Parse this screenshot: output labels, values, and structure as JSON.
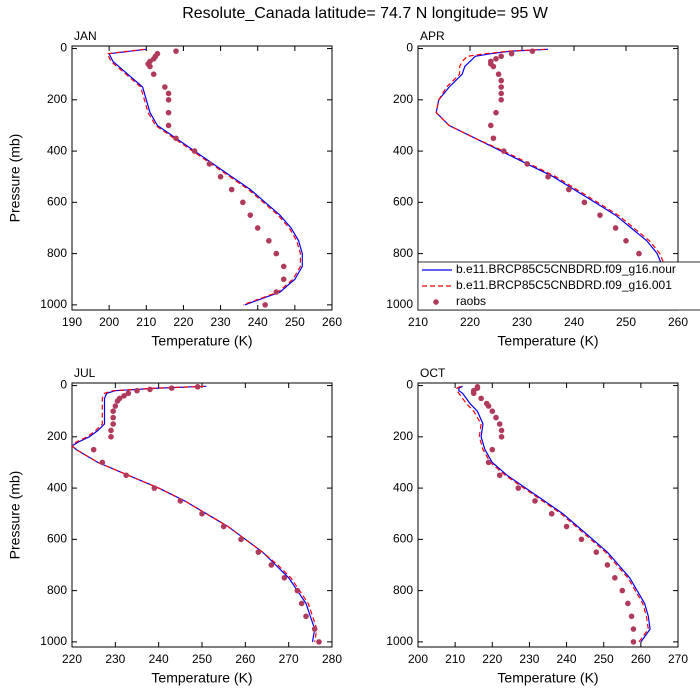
{
  "title": "Resolute_Canada  latitude= 74.7 N longitude= 95 W",
  "chart_data": [
    {
      "type": "line",
      "title": "JAN",
      "xlabel": "Temperature (K)",
      "ylabel": "Pressure (mb)",
      "xlim": [
        190,
        260
      ],
      "xticks": [
        190,
        200,
        210,
        220,
        230,
        240,
        250,
        260
      ],
      "ylim": [
        -10,
        1020
      ],
      "yticks": [
        0,
        200,
        400,
        600,
        800,
        1000
      ],
      "y_inverted": true,
      "series": [
        {
          "color": "#0000ff",
          "style": "solid",
          "x": [
            210,
            200,
            201,
            205,
            209,
            210,
            211,
            213,
            218,
            223,
            228,
            233,
            238,
            242,
            246,
            249,
            251,
            252,
            252,
            250,
            246,
            236.5
          ],
          "y": [
            3,
            20,
            50,
            100,
            150,
            200,
            250,
            300,
            350,
            400,
            450,
            500,
            550,
            600,
            650,
            700,
            750,
            800,
            850,
            900,
            950,
            1000
          ]
        },
        {
          "color": "#ff0000",
          "style": "dashed",
          "x": [
            209.5,
            199.5,
            200.5,
            204.5,
            208.5,
            209.5,
            210.5,
            212.5,
            217.5,
            222.5,
            227.5,
            232.5,
            237.5,
            241.5,
            245.5,
            248.5,
            250.5,
            251.5,
            251.5,
            249.5,
            245.5,
            236
          ],
          "y": [
            3,
            20,
            50,
            100,
            150,
            200,
            250,
            300,
            350,
            400,
            450,
            500,
            550,
            600,
            650,
            700,
            750,
            800,
            850,
            900,
            950,
            1000
          ]
        },
        {
          "color": "#b03a5b",
          "style": "markers",
          "x": [
            218,
            213,
            212.5,
            212,
            211,
            210.5,
            211,
            212,
            215,
            216,
            216,
            216,
            216,
            218,
            223,
            227,
            230,
            233,
            236,
            238,
            240,
            243,
            245,
            247,
            247,
            245,
            242
          ],
          "y": [
            10,
            20,
            30,
            40,
            50,
            60,
            70,
            100,
            150,
            175,
            200,
            250,
            300,
            350,
            400,
            450,
            500,
            550,
            600,
            650,
            700,
            750,
            800,
            850,
            900,
            950,
            1000
          ]
        }
      ]
    },
    {
      "type": "line",
      "title": "APR",
      "xlabel": "Temperature (K)",
      "xlim": [
        210,
        260
      ],
      "xticks": [
        210,
        220,
        230,
        240,
        250,
        260
      ],
      "ylim": [
        -10,
        1020
      ],
      "yticks": [
        0,
        200,
        400,
        600,
        800,
        1000
      ],
      "y_inverted": true,
      "legend": "lower right",
      "series": [
        {
          "name": "b.e11.BRCP85C5CNBDRD.f09_g16.nour",
          "color": "#0000ff",
          "style": "solid",
          "x": [
            235,
            228,
            224,
            221,
            220,
            219,
            218.5,
            216,
            214,
            213.5,
            216,
            221,
            226,
            231,
            236,
            240,
            244,
            248,
            251,
            254,
            256,
            257,
            257,
            255,
            249
          ],
          "y": [
            3,
            10,
            20,
            30,
            50,
            70,
            100,
            150,
            200,
            250,
            300,
            350,
            400,
            450,
            500,
            550,
            600,
            650,
            700,
            750,
            800,
            850,
            900,
            950,
            1000
          ]
        },
        {
          "name": "b.e11.BRCP85C5CNBDRD.f09_g16.001",
          "color": "#ff0000",
          "style": "dashed",
          "x": [
            234.5,
            227.5,
            223,
            219.5,
            218.5,
            218,
            218,
            215.5,
            214,
            213.5,
            216,
            221,
            226.5,
            231.5,
            236.5,
            240.5,
            244.5,
            248.5,
            251.5,
            254.5,
            256.5,
            257.5,
            257.5,
            255.5,
            249.5
          ],
          "y": [
            3,
            10,
            20,
            30,
            50,
            70,
            100,
            150,
            200,
            250,
            300,
            350,
            400,
            450,
            500,
            550,
            600,
            650,
            700,
            750,
            800,
            850,
            900,
            950,
            1000
          ]
        },
        {
          "name": "raobs",
          "color": "#b03a5b",
          "style": "markers",
          "x": [
            232,
            228,
            226,
            225,
            224,
            224,
            224.5,
            225.5,
            226,
            226,
            226,
            226,
            225,
            224,
            224.5,
            226.5,
            231,
            235,
            239,
            242,
            245,
            248,
            250,
            252.5,
            254,
            255,
            254.5,
            252
          ],
          "y": [
            10,
            20,
            30,
            40,
            50,
            60,
            70,
            100,
            125,
            150,
            175,
            200,
            250,
            300,
            350,
            400,
            450,
            500,
            550,
            600,
            650,
            700,
            750,
            800,
            850,
            900,
            950,
            1000
          ]
        }
      ]
    },
    {
      "type": "line",
      "title": "JUL",
      "xlabel": "Temperature (K)",
      "ylabel": "Pressure (mb)",
      "xlim": [
        220,
        280
      ],
      "xticks": [
        220,
        230,
        240,
        250,
        260,
        270,
        280
      ],
      "ylim": [
        -10,
        1020
      ],
      "yticks": [
        0,
        200,
        400,
        600,
        800,
        1000
      ],
      "y_inverted": true,
      "series": [
        {
          "color": "#0000ff",
          "style": "solid",
          "x": [
            251,
            240,
            230,
            228,
            227.5,
            227.5,
            227.5,
            226,
            224,
            221.5,
            220,
            221,
            226,
            233,
            240,
            246,
            251,
            256,
            260,
            264,
            267,
            270,
            272,
            274,
            275,
            276,
            275.5
          ],
          "y": [
            3,
            10,
            20,
            30,
            50,
            100,
            150,
            175,
            200,
            220,
            235,
            250,
            300,
            350,
            400,
            450,
            500,
            550,
            600,
            650,
            700,
            750,
            800,
            850,
            900,
            950,
            1000
          ]
        },
        {
          "color": "#ff0000",
          "style": "dashed",
          "x": [
            250.5,
            239.5,
            229.5,
            227.5,
            227,
            227,
            227,
            225.5,
            223.5,
            221,
            220,
            221,
            226,
            233,
            240,
            246,
            251,
            256,
            260,
            264,
            267.5,
            270.5,
            272.5,
            274.5,
            275.5,
            276.5,
            276
          ],
          "y": [
            3,
            10,
            20,
            30,
            50,
            100,
            150,
            175,
            200,
            220,
            235,
            250,
            300,
            350,
            400,
            450,
            500,
            550,
            600,
            650,
            700,
            750,
            800,
            850,
            900,
            950,
            1000
          ]
        },
        {
          "color": "#b03a5b",
          "style": "markers",
          "x": [
            249,
            243,
            238,
            235,
            233,
            232,
            231,
            230.5,
            230,
            229.5,
            229.5,
            229.5,
            229,
            229,
            225,
            227,
            232.5,
            239,
            245,
            250,
            255,
            259,
            263,
            266,
            269,
            272,
            273,
            274,
            276,
            277
          ],
          "y": [
            5,
            10,
            15,
            20,
            30,
            40,
            50,
            60,
            80,
            100,
            125,
            150,
            175,
            200,
            250,
            300,
            350,
            400,
            450,
            500,
            550,
            600,
            650,
            700,
            750,
            800,
            850,
            900,
            950,
            1000
          ]
        }
      ]
    },
    {
      "type": "line",
      "title": "OCT",
      "xlabel": "Temperature (K)",
      "xlim": [
        200,
        270
      ],
      "xticks": [
        200,
        210,
        220,
        230,
        240,
        250,
        260,
        270
      ],
      "ylim": [
        -10,
        1020
      ],
      "yticks": [
        0,
        200,
        400,
        600,
        800,
        1000
      ],
      "y_inverted": true,
      "series": [
        {
          "color": "#0000ff",
          "style": "solid",
          "x": [
            212,
            211,
            211,
            212,
            213,
            214,
            216,
            217.5,
            217,
            218,
            220,
            224,
            229,
            234,
            239,
            243,
            247,
            251,
            254,
            257,
            259,
            261,
            262,
            262.5,
            260
          ],
          "y": [
            3,
            10,
            20,
            30,
            50,
            70,
            100,
            150,
            200,
            250,
            300,
            350,
            400,
            450,
            500,
            550,
            600,
            650,
            700,
            750,
            800,
            850,
            900,
            950,
            1000
          ]
        },
        {
          "color": "#ff0000",
          "style": "dashed",
          "x": [
            211.5,
            210.5,
            210.5,
            211,
            212,
            213,
            215,
            217,
            216.5,
            217.5,
            219.5,
            223.5,
            228.5,
            233.5,
            238.5,
            242.5,
            246.5,
            250.5,
            253.5,
            256.5,
            258.5,
            260.5,
            261.5,
            262,
            259.5
          ],
          "y": [
            3,
            10,
            20,
            30,
            50,
            70,
            100,
            150,
            200,
            250,
            300,
            350,
            400,
            450,
            500,
            550,
            600,
            650,
            700,
            750,
            800,
            850,
            900,
            950,
            1000
          ]
        },
        {
          "color": "#b03a5b",
          "style": "markers",
          "x": [
            216,
            216,
            215,
            215,
            217,
            218.5,
            219,
            220,
            221,
            222,
            222.5,
            222.5,
            220,
            219,
            222,
            227,
            231.5,
            236,
            240,
            244,
            248,
            251,
            253,
            255,
            256.5,
            257.5,
            258,
            258
          ],
          "y": [
            5,
            10,
            20,
            30,
            50,
            70,
            80,
            100,
            125,
            150,
            175,
            200,
            250,
            300,
            350,
            400,
            450,
            500,
            550,
            600,
            650,
            700,
            750,
            800,
            850,
            900,
            950,
            1000
          ]
        }
      ]
    }
  ]
}
